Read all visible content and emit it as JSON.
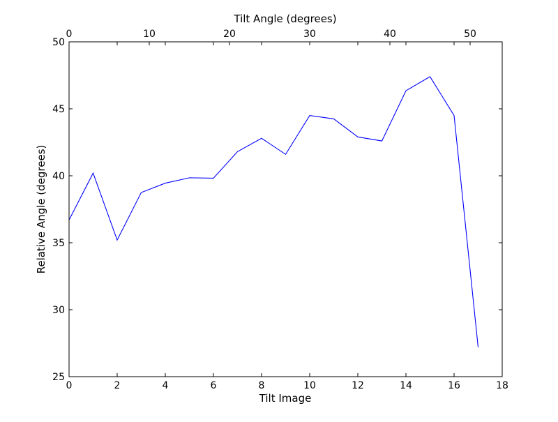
{
  "chart_data": {
    "type": "line",
    "xlabel": "Tilt Image",
    "ylabel": "Relative Angle (degrees)",
    "x2label": "Tilt Angle (degrees)",
    "xlim": [
      0,
      18
    ],
    "ylim": [
      25,
      50
    ],
    "x2lim": [
      0,
      54
    ],
    "xticks": [
      0,
      2,
      4,
      6,
      8,
      10,
      12,
      14,
      16,
      18
    ],
    "yticks": [
      25,
      30,
      35,
      40,
      45,
      50
    ],
    "x2ticks": [
      0,
      10,
      20,
      30,
      40,
      50
    ],
    "series": [
      {
        "color": "#0000ff",
        "x": [
          0,
          1,
          2,
          3,
          4,
          5,
          6,
          7,
          8,
          9,
          10,
          11,
          12,
          13,
          14,
          15,
          16,
          17
        ],
        "y": [
          36.7,
          40.2,
          35.2,
          38.75,
          39.45,
          39.85,
          39.82,
          41.8,
          42.8,
          41.6,
          44.5,
          44.25,
          42.9,
          42.6,
          46.35,
          47.4,
          44.5,
          27.2
        ]
      }
    ],
    "grid": false
  }
}
